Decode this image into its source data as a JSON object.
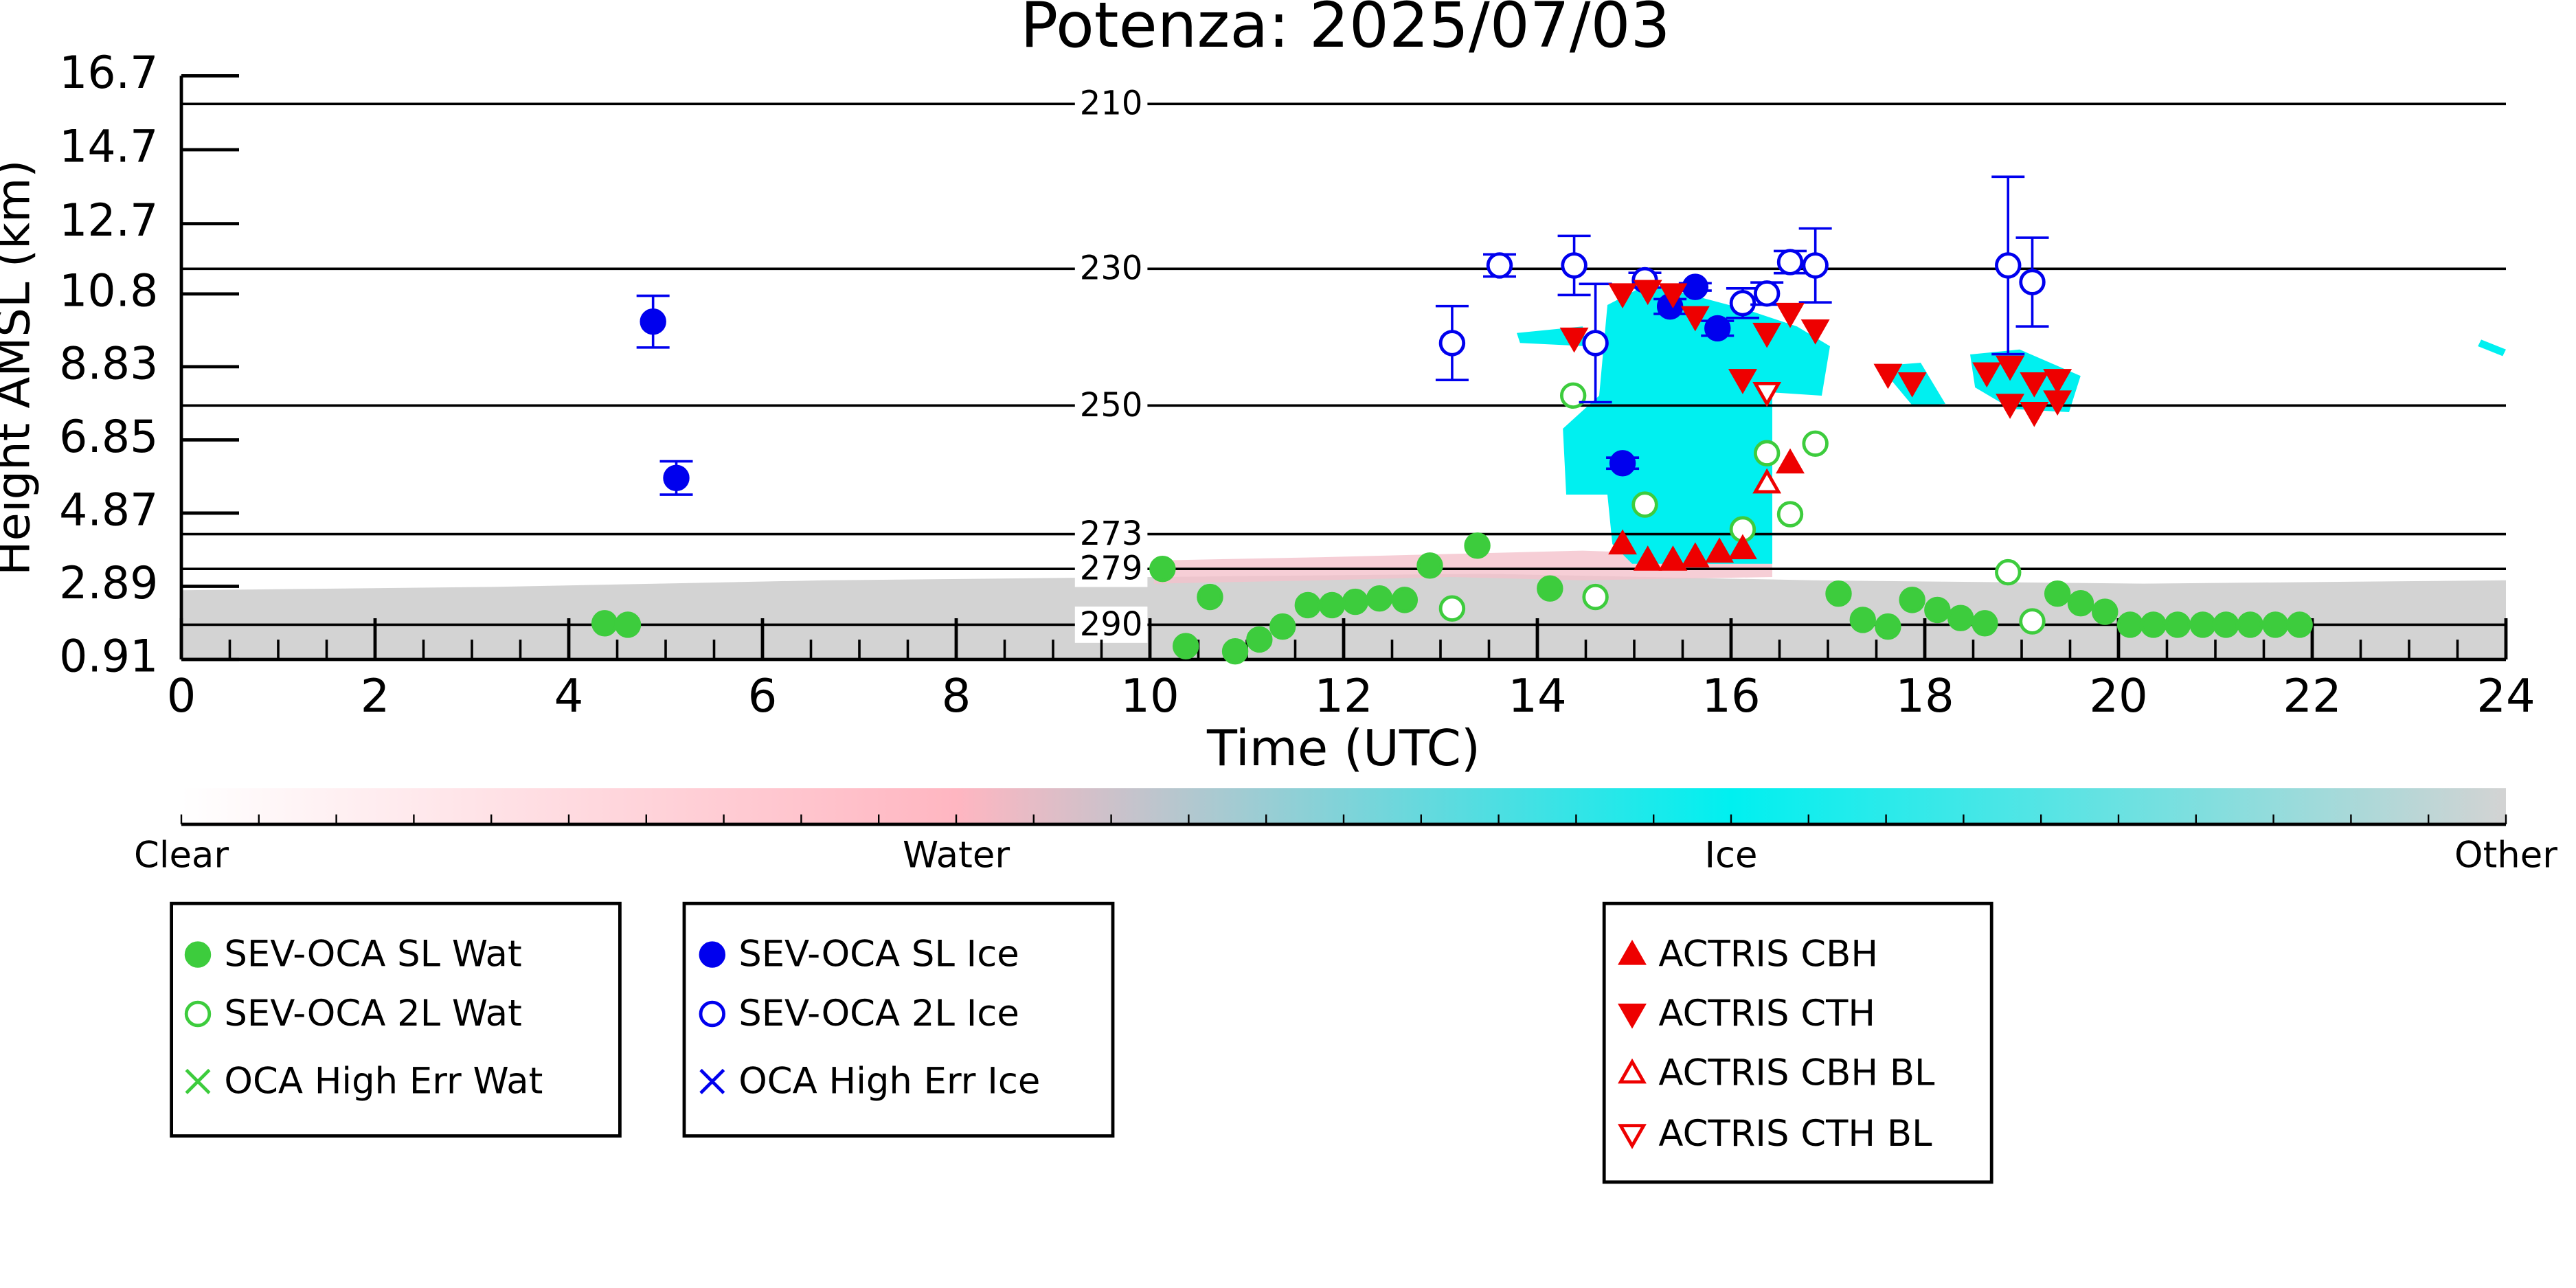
{
  "chart_data": {
    "type": "scatter",
    "title": "Potenza: 2025/07/03",
    "xlabel": "Time (UTC)",
    "ylabel": "Height AMSL (km)",
    "xlim": [
      0,
      24
    ],
    "ylim": [
      0.91,
      16.7
    ],
    "xticks": [
      0,
      2,
      4,
      6,
      8,
      10,
      12,
      14,
      16,
      18,
      20,
      22,
      24
    ],
    "yticks": [
      0.91,
      2.89,
      4.87,
      6.85,
      8.83,
      10.8,
      12.7,
      14.7,
      16.7
    ],
    "series": [
      {
        "name": "SEV-OCA SL Wat",
        "color": "#3dcc3d",
        "marker": "circle",
        "filled": true,
        "x": [
          4.37,
          4.61,
          10.13,
          10.37,
          10.62,
          10.88,
          11.13,
          11.37,
          11.63,
          11.88,
          12.12,
          12.37,
          12.63,
          12.89,
          13.38,
          14.13,
          17.11,
          17.36,
          17.62,
          17.87,
          18.13,
          18.37,
          18.62,
          19.37,
          19.61,
          19.86,
          20.12,
          20.36,
          20.61,
          20.87,
          21.11,
          21.36,
          21.62,
          21.87
        ],
        "values": [
          1.89,
          1.85,
          3.36,
          1.27,
          2.6,
          1.13,
          1.45,
          1.8,
          2.38,
          2.38,
          2.47,
          2.56,
          2.52,
          3.45,
          3.99,
          2.83,
          2.69,
          1.98,
          1.8,
          2.52,
          2.25,
          2.03,
          1.89,
          2.69,
          2.43,
          2.2,
          1.85,
          1.85,
          1.85,
          1.85,
          1.85,
          1.85,
          1.85,
          1.85
        ]
      },
      {
        "name": "SEV-OCA 2L Wat",
        "color": "#3dcc3d",
        "marker": "circle",
        "filled": false,
        "x": [
          14.37,
          13.12,
          14.6,
          15.11,
          16.12,
          16.37,
          16.61,
          16.87,
          18.86,
          19.11
        ],
        "values": [
          8.05,
          2.29,
          2.6,
          5.1,
          4.43,
          6.49,
          4.84,
          6.75,
          3.27,
          1.94
        ]
      },
      {
        "name": "OCA High Err Wat",
        "color": "#3dcc3d",
        "marker": "x",
        "filled": true,
        "x": [],
        "values": []
      },
      {
        "name": "SEV-OCA SL Ice",
        "color": "#0000ee",
        "marker": "circle",
        "filled": true,
        "x": [
          4.87,
          5.11,
          14.88,
          15.37,
          15.63,
          15.86
        ],
        "values": [
          10.05,
          5.82,
          6.22,
          10.46,
          10.99,
          9.87
        ],
        "errors": [
          0.7,
          0.45,
          0.15,
          0.2,
          0.1,
          0.2
        ]
      },
      {
        "name": "SEV-OCA 2L Ice",
        "color": "#0000ee",
        "marker": "circle",
        "filled": false,
        "x": [
          13.12,
          13.61,
          14.38,
          14.6,
          15.11,
          16.12,
          16.37,
          16.61,
          16.87,
          18.86,
          19.11
        ],
        "values": [
          9.47,
          11.57,
          11.57,
          9.47,
          11.17,
          10.55,
          10.81,
          11.66,
          11.57,
          11.57,
          11.12
        ],
        "errors": [
          1.0,
          0.3,
          0.8,
          1.6,
          0.2,
          0.4,
          0.3,
          0.3,
          1.0,
          2.4,
          1.2
        ]
      },
      {
        "name": "OCA High Err Ice",
        "color": "#0000ee",
        "marker": "x",
        "filled": true,
        "x": [],
        "values": []
      },
      {
        "name": "ACTRIS CBH",
        "color": "#ee0000",
        "marker": "triangle-up",
        "filled": true,
        "x": [
          14.88,
          15.14,
          15.4,
          15.63,
          15.88,
          16.12,
          16.61
        ],
        "values": [
          4.03,
          3.59,
          3.59,
          3.68,
          3.81,
          3.9,
          6.22
        ]
      },
      {
        "name": "ACTRIS CTH",
        "color": "#ee0000",
        "marker": "triangle-down",
        "filled": true,
        "x": [
          14.38,
          14.88,
          15.14,
          15.4,
          15.63,
          16.12,
          16.37,
          16.61,
          16.87,
          17.62,
          17.87,
          18.64,
          18.88,
          19.13,
          19.37,
          18.88,
          19.13,
          19.37
        ],
        "values": [
          9.61,
          10.81,
          10.9,
          10.81,
          10.19,
          8.49,
          9.74,
          10.28,
          9.83,
          8.63,
          8.4,
          8.67,
          7.82,
          7.6,
          7.91,
          8.85,
          8.4,
          8.49
        ]
      },
      {
        "name": "ACTRIS CBH BL",
        "color": "#ee0000",
        "marker": "triangle-up",
        "filled": false,
        "x": [
          16.37
        ],
        "values": [
          5.68
        ]
      },
      {
        "name": "ACTRIS CTH BL",
        "color": "#ee0000",
        "marker": "triangle-down",
        "filled": false,
        "x": [
          16.37
        ],
        "values": [
          8.14
        ]
      }
    ],
    "contours": [
      {
        "level": 210,
        "height": 15.94
      },
      {
        "level": 230,
        "height": 11.48
      },
      {
        "level": 250,
        "height": 7.78
      },
      {
        "level": 273,
        "height": 4.3
      },
      {
        "level": 279,
        "height": 3.36
      },
      {
        "level": 290,
        "height": 1.85
      }
    ],
    "colorbar": {
      "labels": [
        "Clear",
        "Water",
        "Ice",
        "Other"
      ],
      "colors": [
        "#ffffff",
        "#ffb6c1",
        "#00f0f0",
        "#d3d3d3"
      ]
    }
  }
}
